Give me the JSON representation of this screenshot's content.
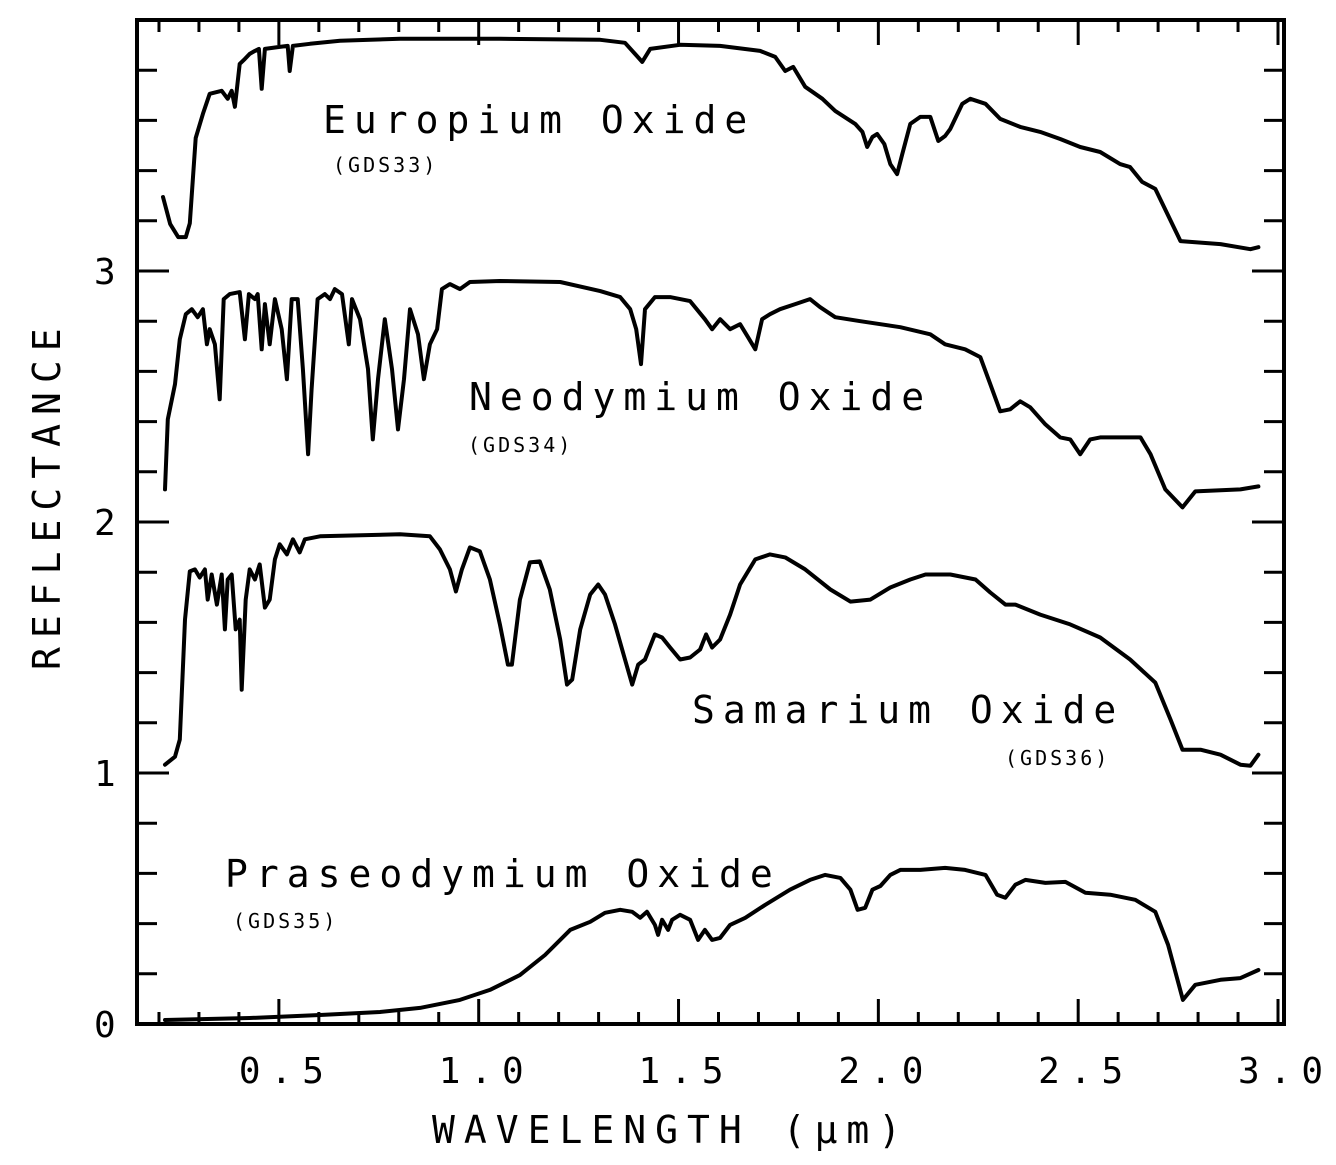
{
  "chart_data": {
    "type": "line",
    "title": "",
    "xlabel": "WAVELENGTH (μm)",
    "ylabel": "REFLECTANCE",
    "xlim": [
      0.145,
      3.015
    ],
    "ylim": [
      0,
      4
    ],
    "xticks": [
      "0.5",
      "1.0",
      "1.5",
      "2.0",
      "2.5",
      "3.0"
    ],
    "yticks": [
      "0",
      "1",
      "2",
      "3"
    ],
    "grid": false,
    "line_color": "#000000",
    "series": [
      {
        "name": "Europium Oxide",
        "sample": "(GDS33)",
        "x": [
          0.21,
          0.228,
          0.248,
          0.267,
          0.277,
          0.292,
          0.31,
          0.327,
          0.357,
          0.372,
          0.382,
          0.39,
          0.402,
          0.415,
          0.427,
          0.44,
          0.45,
          0.457,
          0.465,
          0.502,
          0.522,
          0.527,
          0.535,
          0.578,
          0.653,
          0.803,
          1.053,
          1.304,
          1.366,
          1.391,
          1.409,
          1.429,
          1.504,
          1.604,
          1.704,
          1.742,
          1.767,
          1.787,
          1.817,
          1.835,
          1.86,
          1.892,
          1.942,
          1.96,
          1.972,
          1.985,
          1.997,
          2.015,
          2.03,
          2.047,
          2.06,
          2.08,
          2.105,
          2.13,
          2.15,
          2.167,
          2.18,
          2.21,
          2.23,
          2.268,
          2.305,
          2.355,
          2.405,
          2.455,
          2.505,
          2.555,
          2.605,
          2.63,
          2.66,
          2.693,
          2.756,
          2.856,
          2.931,
          2.951
        ],
        "y": [
          3.295,
          3.187,
          3.135,
          3.135,
          3.19,
          3.53,
          3.626,
          3.706,
          3.718,
          3.686,
          3.718,
          3.654,
          3.825,
          3.845,
          3.865,
          3.877,
          3.885,
          3.726,
          3.885,
          3.893,
          3.897,
          3.797,
          3.897,
          3.905,
          3.917,
          3.925,
          3.925,
          3.921,
          3.909,
          3.865,
          3.833,
          3.885,
          3.901,
          3.897,
          3.877,
          3.853,
          3.797,
          3.813,
          3.734,
          3.714,
          3.686,
          3.638,
          3.586,
          3.554,
          3.494,
          3.534,
          3.546,
          3.506,
          3.426,
          3.386,
          3.466,
          3.586,
          3.614,
          3.614,
          3.518,
          3.538,
          3.566,
          3.666,
          3.686,
          3.666,
          3.606,
          3.574,
          3.554,
          3.526,
          3.494,
          3.474,
          3.426,
          3.414,
          3.355,
          3.327,
          3.119,
          3.107,
          3.087,
          3.095
        ]
      },
      {
        "name": "Neodymium Oxide",
        "sample": "(GDS34)",
        "x": [
          0.215,
          0.222,
          0.24,
          0.252,
          0.267,
          0.282,
          0.297,
          0.31,
          0.32,
          0.327,
          0.34,
          0.352,
          0.362,
          0.377,
          0.402,
          0.415,
          0.425,
          0.44,
          0.447,
          0.457,
          0.465,
          0.477,
          0.49,
          0.507,
          0.52,
          0.532,
          0.547,
          0.56,
          0.573,
          0.582,
          0.597,
          0.615,
          0.628,
          0.64,
          0.658,
          0.675,
          0.683,
          0.703,
          0.723,
          0.735,
          0.748,
          0.765,
          0.783,
          0.798,
          0.813,
          0.828,
          0.848,
          0.863,
          0.878,
          0.896,
          0.908,
          0.928,
          0.953,
          0.978,
          1.053,
          1.204,
          1.304,
          1.354,
          1.379,
          1.394,
          1.406,
          1.416,
          1.441,
          1.479,
          1.529,
          1.566,
          1.584,
          1.604,
          1.629,
          1.654,
          1.674,
          1.692,
          1.709,
          1.729,
          1.754,
          1.792,
          1.829,
          1.854,
          1.892,
          1.955,
          2.055,
          2.13,
          2.167,
          2.217,
          2.255,
          2.28,
          2.305,
          2.33,
          2.355,
          2.38,
          2.418,
          2.455,
          2.48,
          2.505,
          2.53,
          2.555,
          2.656,
          2.681,
          2.718,
          2.761,
          2.793,
          2.906,
          2.951
        ],
        "y": [
          2.13,
          2.409,
          2.549,
          2.728,
          2.828,
          2.848,
          2.816,
          2.848,
          2.708,
          2.768,
          2.708,
          2.489,
          2.888,
          2.908,
          2.916,
          2.728,
          2.908,
          2.888,
          2.908,
          2.688,
          2.868,
          2.708,
          2.888,
          2.768,
          2.569,
          2.888,
          2.888,
          2.609,
          2.27,
          2.529,
          2.888,
          2.908,
          2.888,
          2.928,
          2.908,
          2.708,
          2.888,
          2.808,
          2.609,
          2.329,
          2.569,
          2.808,
          2.609,
          2.369,
          2.569,
          2.848,
          2.748,
          2.569,
          2.708,
          2.768,
          2.928,
          2.948,
          2.928,
          2.956,
          2.96,
          2.956,
          2.92,
          2.896,
          2.848,
          2.768,
          2.629,
          2.848,
          2.896,
          2.896,
          2.88,
          2.808,
          2.768,
          2.808,
          2.768,
          2.788,
          2.736,
          2.688,
          2.808,
          2.828,
          2.848,
          2.868,
          2.888,
          2.856,
          2.816,
          2.8,
          2.776,
          2.748,
          2.708,
          2.688,
          2.657,
          2.549,
          2.441,
          2.449,
          2.481,
          2.457,
          2.389,
          2.337,
          2.329,
          2.27,
          2.329,
          2.337,
          2.337,
          2.27,
          2.13,
          2.058,
          2.122,
          2.13,
          2.142
        ]
      },
      {
        "name": "Samarium Oxide",
        "sample": "(GDS36)",
        "x": [
          0.215,
          0.24,
          0.252,
          0.265,
          0.277,
          0.29,
          0.302,
          0.315,
          0.322,
          0.332,
          0.345,
          0.357,
          0.365,
          0.372,
          0.382,
          0.392,
          0.402,
          0.407,
          0.417,
          0.427,
          0.44,
          0.452,
          0.465,
          0.477,
          0.49,
          0.502,
          0.52,
          0.535,
          0.552,
          0.565,
          0.603,
          0.803,
          0.878,
          0.903,
          0.928,
          0.943,
          0.958,
          0.978,
          1.003,
          1.028,
          1.053,
          1.073,
          1.083,
          1.103,
          1.128,
          1.153,
          1.178,
          1.204,
          1.221,
          1.234,
          1.254,
          1.279,
          1.299,
          1.316,
          1.341,
          1.366,
          1.384,
          1.399,
          1.416,
          1.441,
          1.459,
          1.479,
          1.504,
          1.529,
          1.554,
          1.569,
          1.584,
          1.604,
          1.629,
          1.654,
          1.692,
          1.729,
          1.767,
          1.817,
          1.88,
          1.93,
          1.98,
          2.03,
          2.08,
          2.118,
          2.18,
          2.243,
          2.28,
          2.318,
          2.343,
          2.405,
          2.48,
          2.555,
          2.63,
          2.693,
          2.731,
          2.761,
          2.806,
          2.856,
          2.906,
          2.931,
          2.951
        ],
        "y": [
          1.033,
          1.065,
          1.133,
          1.611,
          1.803,
          1.811,
          1.779,
          1.811,
          1.691,
          1.791,
          1.671,
          1.791,
          1.572,
          1.771,
          1.791,
          1.572,
          1.611,
          1.332,
          1.691,
          1.811,
          1.771,
          1.831,
          1.659,
          1.691,
          1.851,
          1.911,
          1.871,
          1.931,
          1.879,
          1.931,
          1.943,
          1.951,
          1.943,
          1.891,
          1.811,
          1.723,
          1.811,
          1.899,
          1.883,
          1.771,
          1.592,
          1.432,
          1.432,
          1.691,
          1.839,
          1.843,
          1.731,
          1.532,
          1.352,
          1.372,
          1.572,
          1.711,
          1.751,
          1.711,
          1.592,
          1.452,
          1.352,
          1.432,
          1.452,
          1.552,
          1.54,
          1.5,
          1.452,
          1.46,
          1.492,
          1.552,
          1.5,
          1.532,
          1.631,
          1.751,
          1.851,
          1.871,
          1.859,
          1.811,
          1.731,
          1.683,
          1.691,
          1.739,
          1.771,
          1.791,
          1.791,
          1.771,
          1.719,
          1.671,
          1.671,
          1.631,
          1.592,
          1.54,
          1.452,
          1.36,
          1.213,
          1.093,
          1.093,
          1.073,
          1.033,
          1.029,
          1.073
        ]
      },
      {
        "name": "Praseodymium Oxide",
        "sample": "(GDS35)",
        "x": [
          0.215,
          0.427,
          0.603,
          0.753,
          0.853,
          0.953,
          1.028,
          1.103,
          1.166,
          1.229,
          1.279,
          1.316,
          1.354,
          1.384,
          1.404,
          1.421,
          1.441,
          1.449,
          1.459,
          1.474,
          1.484,
          1.504,
          1.529,
          1.549,
          1.566,
          1.584,
          1.604,
          1.629,
          1.667,
          1.717,
          1.779,
          1.829,
          1.867,
          1.905,
          1.93,
          1.948,
          1.967,
          1.985,
          2.005,
          2.03,
          2.055,
          2.105,
          2.167,
          2.217,
          2.268,
          2.297,
          2.318,
          2.343,
          2.368,
          2.418,
          2.468,
          2.518,
          2.58,
          2.643,
          2.693,
          2.725,
          2.762,
          2.793,
          2.856,
          2.906,
          2.951
        ],
        "y": [
          0.016,
          0.024,
          0.036,
          0.048,
          0.064,
          0.096,
          0.136,
          0.195,
          0.275,
          0.375,
          0.407,
          0.443,
          0.455,
          0.447,
          0.423,
          0.447,
          0.395,
          0.355,
          0.415,
          0.375,
          0.415,
          0.435,
          0.415,
          0.335,
          0.375,
          0.335,
          0.343,
          0.395,
          0.423,
          0.475,
          0.535,
          0.574,
          0.594,
          0.582,
          0.535,
          0.455,
          0.463,
          0.535,
          0.55,
          0.594,
          0.614,
          0.614,
          0.622,
          0.614,
          0.594,
          0.515,
          0.503,
          0.555,
          0.574,
          0.562,
          0.566,
          0.523,
          0.515,
          0.495,
          0.447,
          0.315,
          0.096,
          0.156,
          0.176,
          0.183,
          0.215
        ]
      }
    ]
  }
}
